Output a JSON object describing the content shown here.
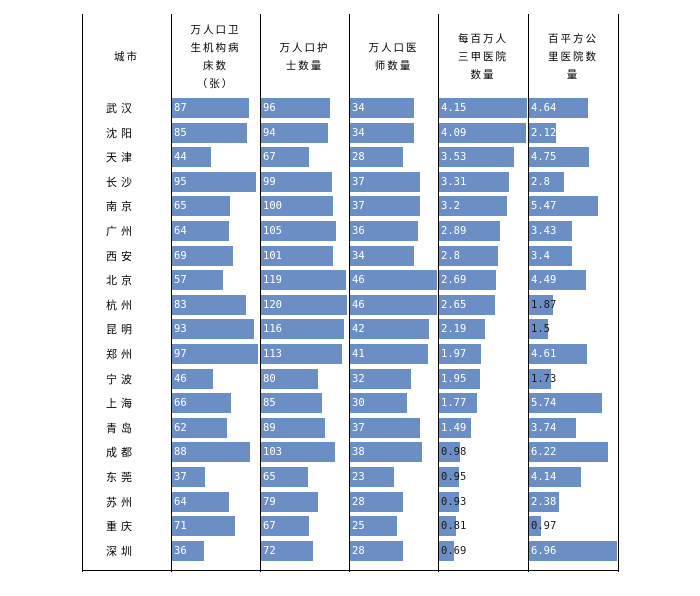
{
  "table": {
    "city_header": "城市",
    "headers": [
      [
        "万人口卫",
        "生机构病",
        "床数",
        "（张）"
      ],
      [
        "万人口护",
        "士数量"
      ],
      [
        "万人口医",
        "师数量"
      ],
      [
        "每百万人",
        "三甲医院",
        "数量"
      ],
      [
        "百平方公",
        "里医院数",
        "量"
      ]
    ]
  },
  "chart_data": {
    "type": "table",
    "bar_color": "#6b8fc4",
    "columns": [
      "万人口卫生机构病床数（张）",
      "万人口护士数量",
      "万人口医师数量",
      "每百万人三甲医院数量",
      "百平方公里医院数量"
    ],
    "categories": [
      "武汉",
      "沈阳",
      "天津",
      "长沙",
      "南京",
      "广州",
      "西安",
      "北京",
      "杭州",
      "昆明",
      "郑州",
      "宁波",
      "上海",
      "青岛",
      "成都",
      "东莞",
      "苏州",
      "重庆",
      "深圳"
    ],
    "series": [
      {
        "name": "万人口卫生机构病床数（张）",
        "values": [
          "87",
          "85",
          "44",
          "95",
          "65",
          "64",
          "69",
          "57",
          "83",
          "93",
          "97",
          "46",
          "66",
          "62",
          "88",
          "37",
          "64",
          "71",
          "36"
        ]
      },
      {
        "name": "万人口护士数量",
        "values": [
          "96",
          "94",
          "67",
          "99",
          "100",
          "105",
          "101",
          "119",
          "120",
          "116",
          "113",
          "80",
          "85",
          "89",
          "103",
          "65",
          "79",
          "67",
          "72"
        ]
      },
      {
        "name": "万人口医师数量",
        "values": [
          "34",
          "34",
          "28",
          "37",
          "37",
          "36",
          "34",
          "46",
          "46",
          "42",
          "41",
          "32",
          "30",
          "37",
          "38",
          "23",
          "28",
          "25",
          "28"
        ]
      },
      {
        "name": "每百万人三甲医院数量",
        "values": [
          "4.15",
          "4.09",
          "3.53",
          "3.31",
          "3.2",
          "2.89",
          "2.8",
          "2.69",
          "2.65",
          "2.19",
          "1.97",
          "1.95",
          "1.77",
          "1.49",
          "0.98",
          "0.95",
          "0.93",
          "0.81",
          "0.69"
        ]
      },
      {
        "name": "百平方公里医院数量",
        "values": [
          "4.64",
          "2.12",
          "4.75",
          "2.8",
          "5.47",
          "3.43",
          "3.4",
          "4.49",
          "1.87",
          "1.5",
          "4.61",
          "1.73",
          "5.74",
          "3.74",
          "6.22",
          "4.14",
          "2.38",
          "0.97",
          "6.96"
        ]
      }
    ]
  }
}
